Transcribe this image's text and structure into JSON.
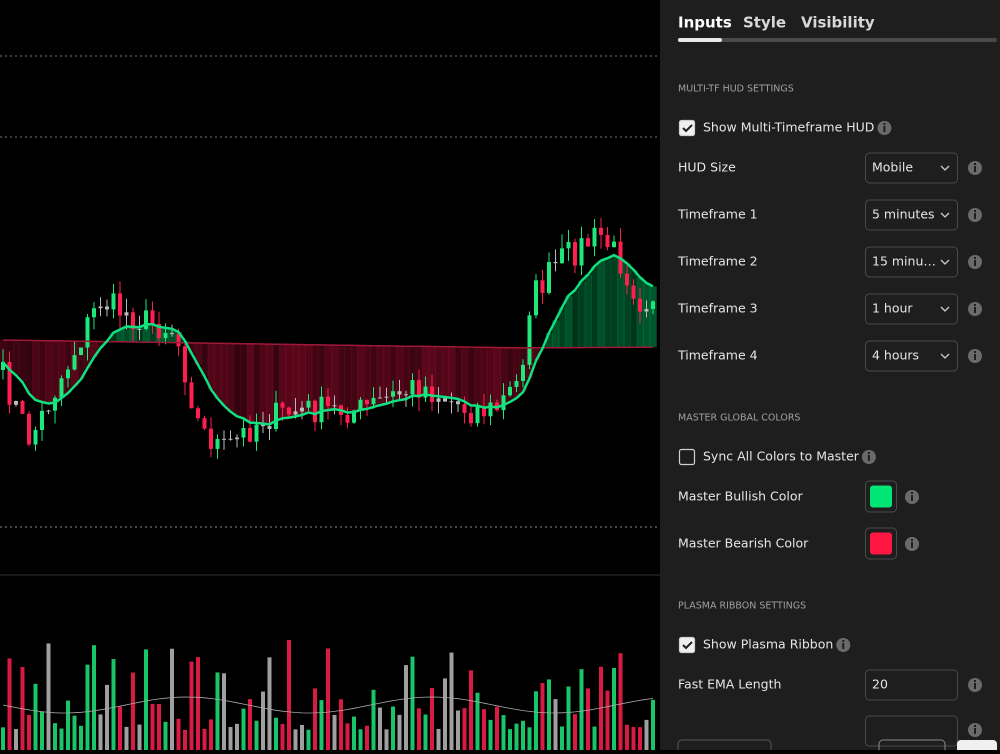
{
  "tabs": [
    {
      "label": "Inputs",
      "active": true
    },
    {
      "label": "Style",
      "active": false
    },
    {
      "label": "Visibility",
      "active": false
    }
  ],
  "sections": [
    {
      "title": "MULTI-TF HUD SETTINGS",
      "rows": [
        {
          "kind": "checkbox",
          "label": "Show Multi-Timeframe HUD",
          "checked": true
        },
        {
          "kind": "select",
          "label": "HUD Size",
          "value": "Mobile"
        },
        {
          "kind": "select",
          "label": "Timeframe 1",
          "value": "5 minutes"
        },
        {
          "kind": "select",
          "label": "Timeframe 2",
          "value": "15 minu…"
        },
        {
          "kind": "select",
          "label": "Timeframe 3",
          "value": "1 hour"
        },
        {
          "kind": "select",
          "label": "Timeframe 4",
          "value": "4 hours"
        }
      ]
    },
    {
      "title": "MASTER GLOBAL COLORS",
      "rows": [
        {
          "kind": "checkbox",
          "label": "Sync All Colors to Master",
          "checked": false
        },
        {
          "kind": "color",
          "label": "Master Bullish Color",
          "color": "#00e676"
        },
        {
          "kind": "color",
          "label": "Master Bearish Color",
          "color": "#ff1744"
        }
      ]
    },
    {
      "title": "PLASMA RIBBON SETTINGS",
      "rows": [
        {
          "kind": "checkbox",
          "label": "Show Plasma Ribbon",
          "checked": true
        },
        {
          "kind": "input",
          "label": "Fast EMA Length",
          "value": 20
        }
      ]
    }
  ]
}
